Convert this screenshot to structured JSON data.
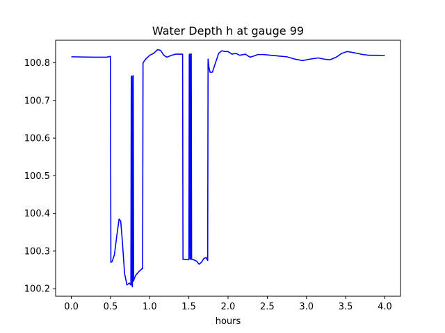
{
  "chart_data": {
    "type": "line",
    "title": "Water Depth h at gauge 99",
    "xlabel": "hours",
    "ylabel": "",
    "xlim": [
      -0.2,
      4.2
    ],
    "ylim": [
      100.18,
      100.86
    ],
    "grid": false,
    "xticks": [
      0.0,
      0.5,
      1.0,
      1.5,
      2.0,
      2.5,
      3.0,
      3.5,
      4.0
    ],
    "xtick_labels": [
      "0.0",
      "0.5",
      "1.0",
      "1.5",
      "2.0",
      "2.5",
      "3.0",
      "3.5",
      "4.0"
    ],
    "yticks": [
      100.2,
      100.3,
      100.4,
      100.5,
      100.6,
      100.7,
      100.8
    ],
    "ytick_labels": [
      "100.2",
      "100.3",
      "100.4",
      "100.5",
      "100.6",
      "100.7",
      "100.8"
    ],
    "series": [
      {
        "color": "#0000ff",
        "x": [
          0.0,
          0.3,
          0.45,
          0.5,
          0.505,
          0.52,
          0.55,
          0.58,
          0.61,
          0.63,
          0.65,
          0.68,
          0.71,
          0.74,
          0.76,
          0.765,
          0.77,
          0.775,
          0.78,
          0.785,
          0.79,
          0.795,
          0.8,
          0.82,
          0.86,
          0.9,
          0.91,
          0.915,
          0.95,
          1.0,
          1.05,
          1.1,
          1.14,
          1.18,
          1.22,
          1.28,
          1.33,
          1.38,
          1.42,
          1.425,
          1.48,
          1.5,
          1.505,
          1.51,
          1.515,
          1.52,
          1.525,
          1.53,
          1.535,
          1.56,
          1.6,
          1.63,
          1.66,
          1.69,
          1.72,
          1.74,
          1.745,
          1.75,
          1.755,
          1.77,
          1.8,
          1.84,
          1.88,
          1.92,
          1.96,
          2.0,
          2.05,
          2.1,
          2.15,
          2.22,
          2.28,
          2.33,
          2.38,
          2.45,
          2.55,
          2.65,
          2.75,
          2.85,
          2.95,
          3.05,
          3.15,
          3.22,
          3.3,
          3.38,
          3.45,
          3.52,
          3.58,
          3.65,
          3.72,
          3.8,
          3.9,
          4.0
        ],
        "y": [
          100.816,
          100.815,
          100.815,
          100.817,
          100.27,
          100.272,
          100.29,
          100.34,
          100.385,
          100.38,
          100.33,
          100.24,
          100.21,
          100.215,
          100.21,
          100.762,
          100.765,
          100.21,
          100.205,
          100.765,
          100.766,
          100.22,
          100.225,
          100.235,
          100.245,
          100.253,
          100.253,
          100.8,
          100.81,
          100.82,
          100.825,
          100.835,
          100.833,
          100.82,
          100.815,
          100.82,
          100.823,
          100.823,
          100.823,
          100.278,
          100.277,
          100.277,
          100.822,
          100.823,
          100.28,
          100.278,
          100.823,
          100.824,
          100.278,
          100.277,
          100.273,
          100.265,
          100.27,
          100.28,
          100.283,
          100.275,
          100.81,
          100.8,
          100.79,
          100.775,
          100.775,
          100.8,
          100.825,
          100.832,
          100.83,
          100.83,
          100.823,
          100.825,
          100.82,
          100.823,
          100.815,
          100.818,
          100.822,
          100.822,
          100.82,
          100.818,
          100.816,
          100.81,
          100.806,
          100.81,
          100.813,
          100.81,
          100.808,
          100.815,
          100.825,
          100.83,
          100.828,
          100.825,
          100.822,
          100.82,
          100.82,
          100.819
        ]
      }
    ]
  }
}
